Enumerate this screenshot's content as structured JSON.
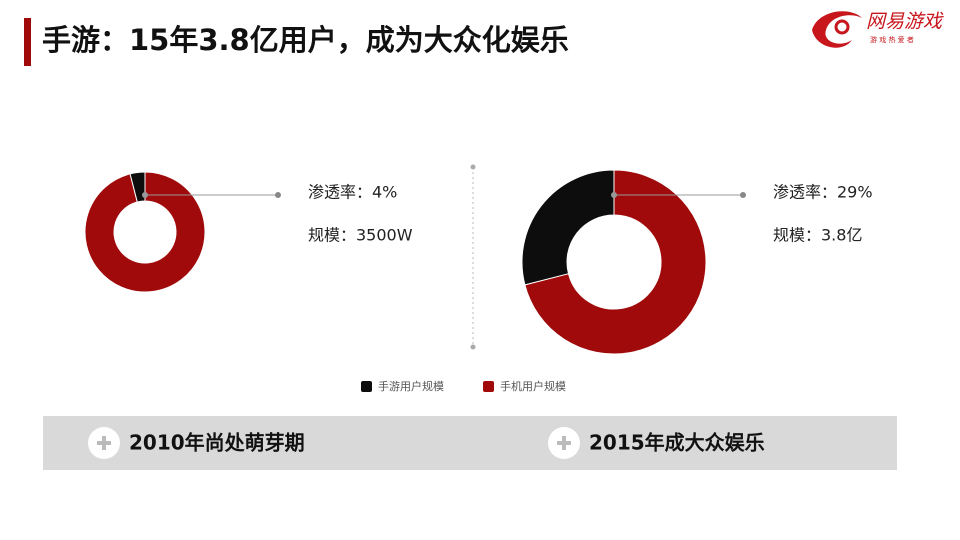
{
  "title": "手游：15年3.8亿用户，成为大众化娱乐",
  "logo": {
    "name": "网易游戏",
    "tagline": "游 戏 热 爱 者"
  },
  "legend": [
    {
      "name": "手游用户规模",
      "color": "#0d0d0d"
    },
    {
      "name": "手机用户规模",
      "color": "#a00a0b"
    }
  ],
  "chart_data": [
    {
      "type": "pie",
      "donut": true,
      "values": [
        4,
        96
      ],
      "annotations": [
        "渗透率：4%",
        "规模：3500W"
      ],
      "caption": "2010年尚处萌芽期"
    },
    {
      "type": "pie",
      "donut": true,
      "values": [
        29,
        71
      ],
      "annotations": [
        "渗透率：29%",
        "规模：3.8亿"
      ],
      "caption": "2015年成大众娱乐"
    }
  ]
}
